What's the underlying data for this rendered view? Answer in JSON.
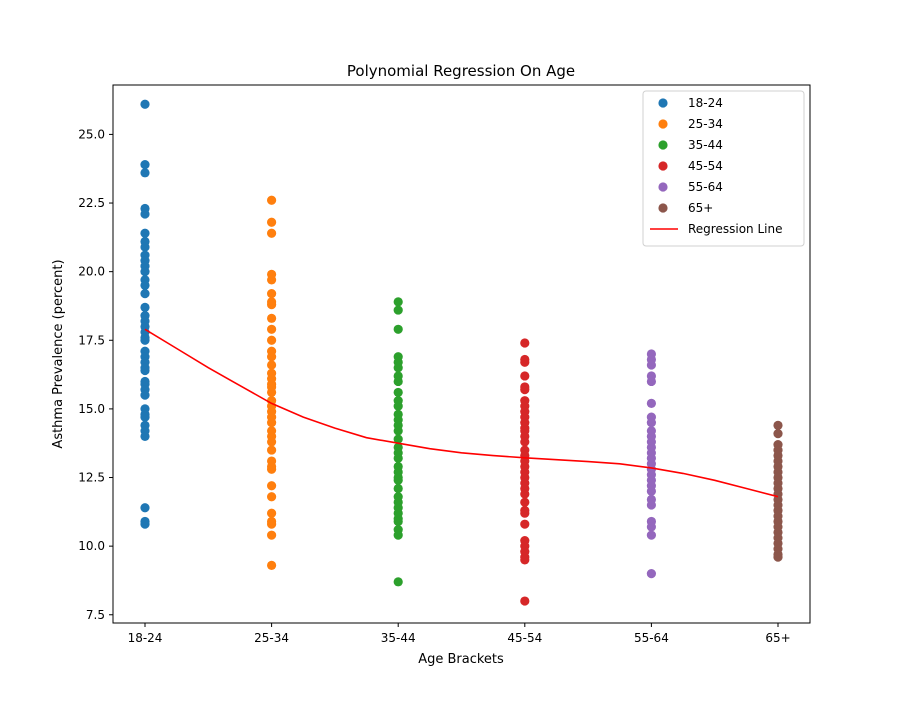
{
  "chart_data": {
    "type": "scatter",
    "title": "Polynomial Regression On Age",
    "xlabel": "Age Brackets",
    "ylabel": "Asthma Prevalence (percent)",
    "categories": [
      "18-24",
      "25-34",
      "35-44",
      "45-54",
      "55-64",
      "65+"
    ],
    "ylim": [
      7.2,
      26.8
    ],
    "yticks": [
      7.5,
      10.0,
      12.5,
      15.0,
      17.5,
      20.0,
      22.5,
      25.0
    ],
    "ytick_labels": [
      "7.5",
      "10.0",
      "12.5",
      "15.0",
      "17.5",
      "20.0",
      "22.5",
      "25.0"
    ],
    "grid": false,
    "legend_position": "top-right",
    "series": [
      {
        "name": "18-24",
        "color": "#1f77b4",
        "x": "18-24",
        "values": [
          26.1,
          23.9,
          23.6,
          22.3,
          22.1,
          21.4,
          21.1,
          20.9,
          20.6,
          20.4,
          20.2,
          20.0,
          19.7,
          19.5,
          19.2,
          18.7,
          18.4,
          18.2,
          18.0,
          17.8,
          17.6,
          17.5,
          17.1,
          16.9,
          16.7,
          16.5,
          16.4,
          16.0,
          15.9,
          15.7,
          15.5,
          15.0,
          14.8,
          14.7,
          14.4,
          14.2,
          14.0,
          11.4,
          10.9,
          10.8
        ]
      },
      {
        "name": "25-34",
        "color": "#ff7f0e",
        "x": "25-34",
        "values": [
          22.6,
          21.8,
          21.4,
          19.9,
          19.7,
          19.2,
          18.9,
          18.8,
          18.3,
          17.9,
          17.5,
          17.1,
          16.9,
          16.6,
          16.3,
          16.1,
          15.9,
          15.8,
          15.6,
          15.3,
          15.1,
          14.9,
          14.7,
          14.5,
          14.2,
          14.0,
          13.8,
          13.5,
          13.1,
          12.9,
          12.8,
          12.2,
          11.8,
          11.2,
          10.9,
          10.8,
          10.4,
          9.3
        ]
      },
      {
        "name": "35-44",
        "color": "#2ca02c",
        "x": "35-44",
        "values": [
          18.9,
          18.6,
          17.9,
          16.9,
          16.7,
          16.5,
          16.2,
          16.0,
          15.6,
          15.3,
          15.1,
          14.8,
          14.6,
          14.4,
          14.2,
          13.9,
          13.6,
          13.4,
          13.2,
          12.9,
          12.7,
          12.5,
          12.4,
          12.1,
          11.8,
          11.6,
          11.4,
          11.2,
          11.0,
          10.9,
          10.6,
          10.4,
          8.7
        ]
      },
      {
        "name": "45-54",
        "color": "#d62728",
        "x": "45-54",
        "values": [
          17.4,
          16.8,
          16.7,
          16.2,
          15.8,
          15.7,
          15.3,
          15.1,
          14.9,
          14.7,
          14.5,
          14.3,
          14.2,
          14.0,
          13.8,
          13.5,
          13.3,
          13.1,
          12.9,
          12.7,
          12.5,
          12.3,
          12.1,
          11.9,
          11.6,
          11.3,
          11.2,
          10.8,
          10.2,
          10.0,
          9.8,
          9.6,
          9.5,
          8.0
        ]
      },
      {
        "name": "55-64",
        "color": "#9467bd",
        "x": "55-64",
        "values": [
          17.0,
          16.8,
          16.6,
          16.2,
          16.0,
          15.2,
          14.7,
          14.5,
          14.2,
          14.0,
          13.8,
          13.6,
          13.4,
          13.2,
          13.0,
          12.8,
          12.6,
          12.4,
          12.2,
          12.0,
          11.7,
          11.5,
          10.9,
          10.7,
          10.4,
          9.0
        ]
      },
      {
        "name": "65+",
        "color": "#8c564b",
        "x": "65+",
        "values": [
          14.4,
          14.1,
          13.7,
          13.5,
          13.3,
          13.1,
          12.9,
          12.7,
          12.5,
          12.3,
          12.1,
          11.9,
          11.7,
          11.5,
          11.3,
          11.1,
          10.9,
          10.7,
          10.5,
          10.3,
          10.1,
          9.9,
          9.7,
          9.6
        ]
      }
    ],
    "regression": {
      "name": "Regression Line",
      "color": "#ff0000",
      "x": [
        0,
        0.25,
        0.5,
        0.75,
        1,
        1.25,
        1.5,
        1.75,
        2,
        2.25,
        2.5,
        2.75,
        3,
        3.25,
        3.5,
        3.75,
        4,
        4.25,
        4.5,
        4.75,
        5
      ],
      "values": [
        17.9,
        17.2,
        16.5,
        15.85,
        15.2,
        14.7,
        14.3,
        13.95,
        13.75,
        13.55,
        13.4,
        13.3,
        13.22,
        13.15,
        13.08,
        13.0,
        12.85,
        12.65,
        12.4,
        12.1,
        11.8
      ]
    }
  }
}
